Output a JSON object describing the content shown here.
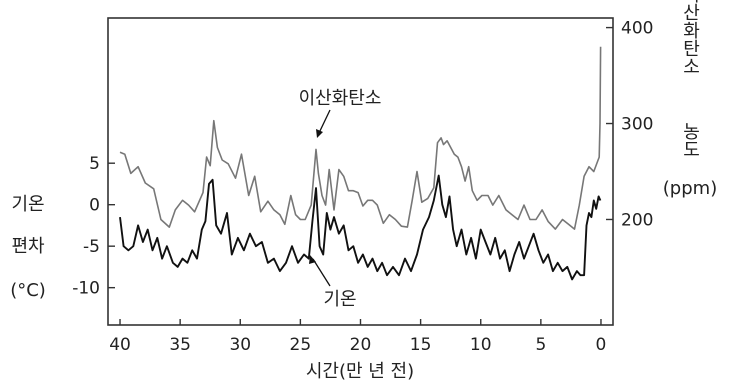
{
  "chart_data": {
    "type": "line",
    "x_axis": {
      "label": "시간(만 년 전)",
      "ticks": [
        40,
        35,
        30,
        25,
        20,
        15,
        10,
        5,
        0
      ],
      "range": [
        41,
        -1
      ],
      "direction": "reversed"
    },
    "y_left": {
      "label_lines": [
        "기온",
        "편차",
        "(°C)"
      ],
      "ticks": [
        5,
        0,
        -5,
        -10
      ],
      "range": [
        -14.5,
        22.5
      ]
    },
    "y_right": {
      "label_lines": [
        "이산화탄소",
        "농도",
        "(ppm)"
      ],
      "ticks": [
        200,
        300,
        400
      ],
      "range": [
        90,
        410
      ]
    },
    "annotations": {
      "co2_label": "이산화탄소",
      "temp_label": "기온"
    },
    "colors": {
      "co2_line": "#777777",
      "temp_line": "#111111",
      "axes": "#333333"
    },
    "series": [
      {
        "name": "이산화탄소",
        "axis": "right",
        "x": [
          40.0,
          39.6,
          39.1,
          38.5,
          37.9,
          37.2,
          36.6,
          35.9,
          35.4,
          34.8,
          34.3,
          33.8,
          33.1,
          32.8,
          32.5,
          32.2,
          31.9,
          31.5,
          31.0,
          30.4,
          29.9,
          29.3,
          28.8,
          28.3,
          27.7,
          27.2,
          26.7,
          26.3,
          25.8,
          25.4,
          25.0,
          24.6,
          24.1,
          23.7,
          23.5,
          23.2,
          22.9,
          22.6,
          22.2,
          21.8,
          21.4,
          21.0,
          20.6,
          20.2,
          19.8,
          19.4,
          19.0,
          18.6,
          18.1,
          17.6,
          17.1,
          16.6,
          16.1,
          15.7,
          15.3,
          14.9,
          14.4,
          13.9,
          13.6,
          13.3,
          13.1,
          12.8,
          12.5,
          12.2,
          11.9,
          11.6,
          11.3,
          11.0,
          10.7,
          10.3,
          9.9,
          9.4,
          9.0,
          8.5,
          7.9,
          7.4,
          6.9,
          6.4,
          5.9,
          5.4,
          4.9,
          4.4,
          3.8,
          3.2,
          2.7,
          2.2,
          1.8,
          1.4,
          1.0,
          0.6,
          0.3,
          0.15,
          0.08,
          0.03
        ],
        "values": [
          270,
          268,
          248,
          255,
          238,
          232,
          200,
          192,
          210,
          220,
          215,
          208,
          228,
          265,
          256,
          303,
          275,
          262,
          258,
          243,
          268,
          225,
          245,
          208,
          219,
          210,
          205,
          195,
          225,
          205,
          200,
          200,
          215,
          273,
          248,
          225,
          215,
          252,
          210,
          252,
          245,
          230,
          230,
          228,
          214,
          220,
          220,
          215,
          196,
          205,
          200,
          193,
          192,
          220,
          250,
          218,
          222,
          233,
          280,
          285,
          278,
          282,
          275,
          268,
          265,
          255,
          240,
          255,
          230,
          220,
          225,
          225,
          215,
          225,
          210,
          205,
          200,
          215,
          200,
          200,
          210,
          198,
          190,
          200,
          195,
          190,
          215,
          245,
          255,
          250,
          260,
          265,
          300,
          380
        ]
      },
      {
        "name": "기온",
        "axis": "left",
        "x": [
          40.0,
          39.7,
          39.3,
          38.9,
          38.5,
          38.1,
          37.7,
          37.3,
          36.9,
          36.5,
          36.1,
          35.6,
          35.2,
          34.8,
          34.4,
          34.0,
          33.6,
          33.2,
          32.9,
          32.6,
          32.3,
          32.0,
          31.6,
          31.1,
          30.7,
          30.2,
          29.7,
          29.2,
          28.7,
          28.2,
          27.7,
          27.2,
          26.7,
          26.2,
          25.7,
          25.2,
          24.7,
          24.3,
          24.0,
          23.7,
          23.4,
          23.1,
          22.8,
          22.5,
          22.2,
          21.8,
          21.4,
          21.0,
          20.6,
          20.2,
          19.8,
          19.4,
          19.0,
          18.6,
          18.2,
          17.8,
          17.3,
          16.8,
          16.3,
          15.8,
          15.3,
          14.8,
          14.3,
          13.9,
          13.5,
          13.2,
          12.9,
          12.6,
          12.3,
          12.0,
          11.6,
          11.2,
          10.8,
          10.4,
          10.0,
          9.6,
          9.2,
          8.8,
          8.4,
          8.0,
          7.6,
          7.2,
          6.8,
          6.4,
          6.0,
          5.6,
          5.2,
          4.8,
          4.4,
          4.0,
          3.6,
          3.2,
          2.8,
          2.4,
          2.0,
          1.7,
          1.4,
          1.2,
          1.0,
          0.8,
          0.6,
          0.4,
          0.2,
          0.05
        ],
        "values": [
          -1.5,
          -5.0,
          -5.5,
          -5.0,
          -2.5,
          -4.5,
          -3.0,
          -5.5,
          -4.0,
          -6.5,
          -5.0,
          -7.0,
          -7.5,
          -6.5,
          -7.0,
          -5.5,
          -6.5,
          -3.0,
          -2.0,
          2.5,
          3.0,
          -2.5,
          -3.5,
          -1.0,
          -6.0,
          -4.0,
          -5.5,
          -3.5,
          -5.0,
          -4.5,
          -7.0,
          -6.5,
          -8.0,
          -7.0,
          -5.0,
          -7.0,
          -6.0,
          -6.5,
          -2.0,
          2.0,
          -5.0,
          -6.0,
          -1.0,
          -3.0,
          -1.5,
          -3.5,
          -2.5,
          -5.5,
          -5.0,
          -7.0,
          -6.0,
          -7.5,
          -6.5,
          -8.0,
          -7.0,
          -8.5,
          -7.5,
          -8.5,
          -6.5,
          -8.0,
          -6.0,
          -3.0,
          -1.5,
          0.5,
          3.5,
          0.0,
          -1.5,
          1.0,
          -3.0,
          -5.0,
          -3.0,
          -6.0,
          -4.0,
          -6.5,
          -3.0,
          -4.5,
          -6.0,
          -4.0,
          -6.5,
          -5.5,
          -8.0,
          -6.0,
          -4.5,
          -6.5,
          -5.0,
          -3.5,
          -5.5,
          -7.0,
          -6.0,
          -8.0,
          -7.0,
          -8.0,
          -7.5,
          -9.0,
          -8.0,
          -8.5,
          -8.5,
          -2.5,
          -1.0,
          -1.5,
          0.5,
          -0.5,
          1.0,
          0.5
        ]
      }
    ]
  }
}
